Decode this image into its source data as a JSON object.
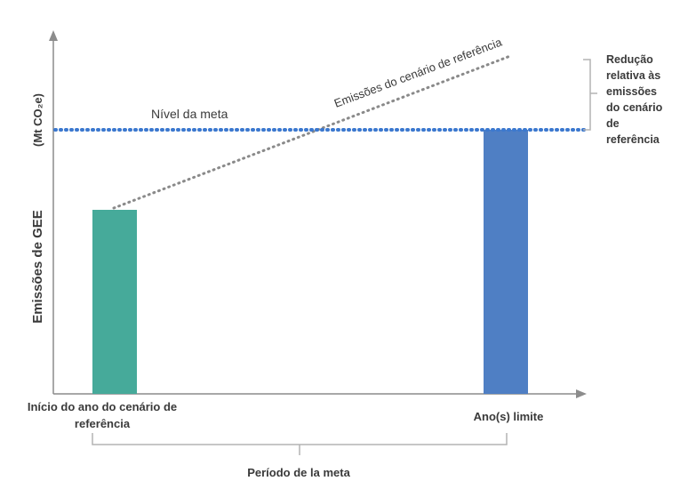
{
  "labels": {
    "y_axis_main": "Emissões de GEE",
    "y_axis_unit": "(Mt CO₂e)",
    "target_level": "Nível da meta",
    "baseline_emissions": "Emissões do cenário de referência",
    "reduction_lines": [
      "Redução",
      "relativa às",
      "emissões",
      "do cenário",
      "de",
      "referência"
    ],
    "x_start_lines": [
      "Início do ano do cenário de",
      "referência"
    ],
    "x_end": "Ano(s) limite",
    "period": "Período  de la meta"
  },
  "colors": {
    "base_bar": "#46aa9a",
    "target_bar": "#4f7fc4",
    "target_line": "#3b78cf",
    "trend_line": "#8a8a8a",
    "axis": "#8c8c8c",
    "bracket": "#b3b3b3"
  }
}
